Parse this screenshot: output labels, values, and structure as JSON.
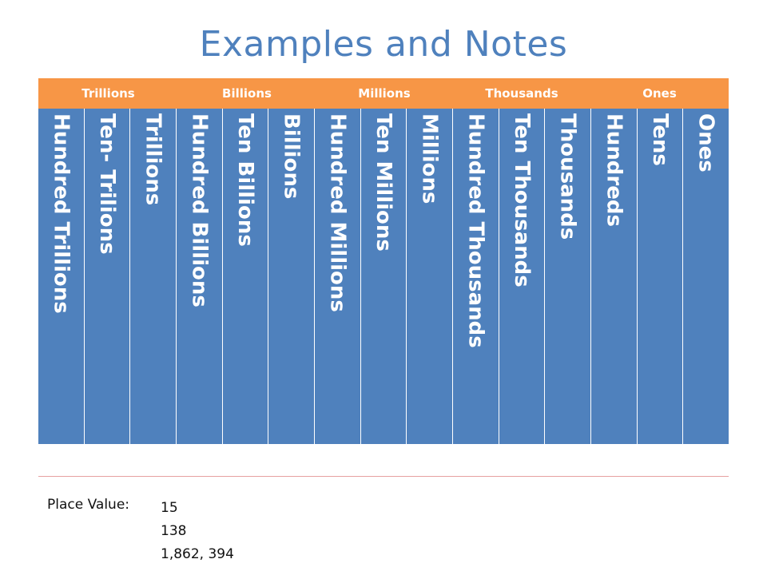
{
  "title": "Examples and Notes",
  "colors": {
    "title": "#4f81bd",
    "header_bg": "#f79646",
    "column_bg": "#4f81bd"
  },
  "groups": [
    "Trillions",
    "Billions",
    "Millions",
    "Thousands",
    "Ones"
  ],
  "columns": [
    "Hundred Trillions",
    "Ten- Trilions",
    "Trillions",
    "Hundred Billions",
    "Ten Billions",
    "Billions",
    "Hundred Millions",
    "Ten Millions",
    "Millions",
    "Hundred Thousands",
    "Ten Thousands",
    "Thousands",
    "Hundreds",
    "Tens",
    "Ones"
  ],
  "place_value": {
    "label": "Place Value:",
    "examples": [
      "15",
      "138",
      "1,862, 394"
    ]
  }
}
